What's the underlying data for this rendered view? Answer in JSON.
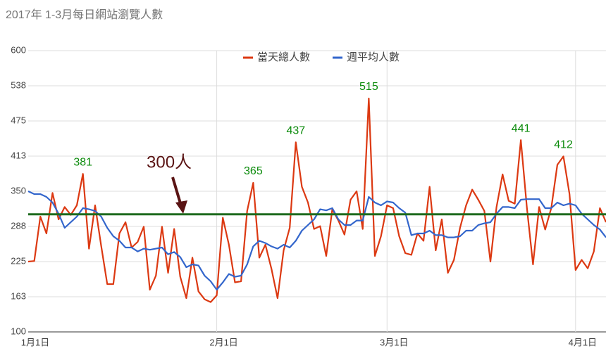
{
  "chart_data": {
    "type": "line",
    "title": "2017年 1-3月每日網站瀏覽人數",
    "x": [
      0,
      1,
      2,
      3,
      4,
      5,
      6,
      7,
      8,
      9,
      10,
      11,
      12,
      13,
      14,
      15,
      16,
      17,
      18,
      19,
      20,
      21,
      22,
      23,
      24,
      25,
      26,
      27,
      28,
      29,
      30,
      31,
      32,
      33,
      34,
      35,
      36,
      37,
      38,
      39,
      40,
      41,
      42,
      43,
      44,
      45,
      46,
      47,
      48,
      49,
      50,
      51,
      52,
      53,
      54,
      55,
      56,
      57,
      58,
      59,
      60,
      61,
      62,
      63,
      64,
      65,
      66,
      67,
      68,
      69,
      70,
      71,
      72,
      73,
      74,
      75,
      76,
      77,
      78,
      79,
      80,
      81,
      82,
      83,
      84,
      85,
      86,
      87,
      88,
      89,
      90,
      91,
      92,
      93,
      94,
      95
    ],
    "series": [
      {
        "name": "當天總人數",
        "color": "#dc3912",
        "values": [
          225,
          226,
          305,
          275,
          347,
          300,
          322,
          308,
          325,
          381,
          248,
          325,
          253,
          185,
          185,
          275,
          295,
          250,
          260,
          287,
          175,
          200,
          287,
          205,
          283,
          198,
          160,
          232,
          172,
          158,
          153,
          165,
          303,
          255,
          188,
          190,
          315,
          365,
          232,
          255,
          212,
          160,
          245,
          285,
          437,
          358,
          330,
          283,
          288,
          235,
          318,
          298,
          273,
          335,
          350,
          283,
          515,
          235,
          270,
          325,
          320,
          270,
          240,
          237,
          275,
          262,
          358,
          245,
          300,
          205,
          228,
          285,
          325,
          353,
          335,
          315,
          225,
          322,
          380,
          333,
          328,
          441,
          320,
          220,
          322,
          282,
          320,
          397,
          412,
          345,
          210,
          228,
          213,
          243,
          320,
          295
        ],
        "value_labels": [
          null,
          null,
          null,
          null,
          null,
          null,
          null,
          null,
          null,
          "381",
          null,
          null,
          null,
          null,
          null,
          null,
          null,
          null,
          null,
          null,
          null,
          null,
          null,
          null,
          null,
          null,
          null,
          null,
          null,
          null,
          null,
          null,
          null,
          null,
          null,
          null,
          null,
          "365",
          null,
          null,
          null,
          null,
          null,
          null,
          "437",
          null,
          null,
          null,
          null,
          null,
          null,
          null,
          null,
          null,
          null,
          null,
          "515",
          null,
          null,
          null,
          null,
          null,
          null,
          null,
          null,
          null,
          null,
          null,
          null,
          null,
          null,
          null,
          null,
          null,
          null,
          null,
          null,
          null,
          null,
          null,
          null,
          "441",
          null,
          null,
          null,
          null,
          null,
          null,
          "412",
          null,
          null,
          null,
          null,
          null,
          null,
          null
        ]
      },
      {
        "name": "週平均人數",
        "color": "#3366cc",
        "values": [
          350,
          345,
          345,
          340,
          330,
          310,
          285,
          295,
          305,
          320,
          318,
          315,
          305,
          285,
          270,
          262,
          250,
          250,
          243,
          248,
          246,
          248,
          250,
          238,
          242,
          233,
          215,
          220,
          218,
          200,
          190,
          175,
          188,
          203,
          198,
          200,
          220,
          252,
          262,
          258,
          252,
          248,
          255,
          250,
          262,
          280,
          290,
          300,
          318,
          316,
          320,
          300,
          290,
          290,
          298,
          298,
          340,
          330,
          325,
          332,
          330,
          320,
          312,
          272,
          275,
          275,
          280,
          272,
          272,
          268,
          268,
          270,
          280,
          280,
          290,
          293,
          295,
          310,
          322,
          322,
          320,
          335,
          336,
          336,
          336,
          320,
          320,
          330,
          325,
          328,
          325,
          310,
          300,
          290,
          282,
          268
        ]
      }
    ],
    "xlim": [
      0,
      95
    ],
    "xticks": [
      {
        "value": 0,
        "label": "1月1日"
      },
      {
        "value": 31,
        "label": "2月1日"
      },
      {
        "value": 59,
        "label": "3月1日"
      },
      {
        "value": 90,
        "label": "4月1日"
      }
    ],
    "ylim": [
      100,
      600
    ],
    "yticks": [
      100,
      {
        "value": 162.5,
        "label": "163"
      },
      225,
      {
        "value": 287.5,
        "label": "288"
      },
      350,
      {
        "value": 412.5,
        "label": "413"
      },
      475,
      {
        "value": 537.5,
        "label": "538"
      },
      600
    ],
    "grid": true,
    "legend": "top",
    "reference_line": {
      "value": 309,
      "color": "#1e6b1e"
    },
    "annotation": "300人",
    "label_color": "#0a8a0a"
  }
}
